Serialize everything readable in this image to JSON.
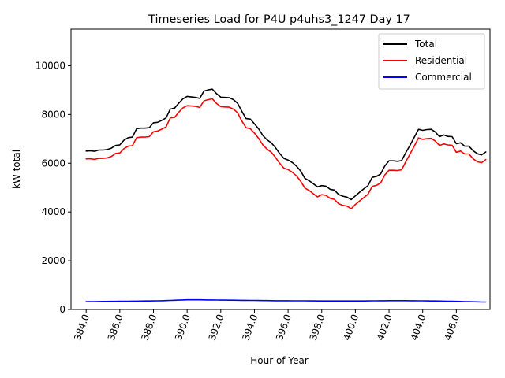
{
  "chart_data": {
    "type": "line",
    "title": "Timeseries Load for P4U p4uhs3_1247  Day 17",
    "xlabel": "Hour of Year",
    "ylabel": "kW total",
    "xlim": [
      383.1,
      408.0
    ],
    "ylim": [
      0,
      11500
    ],
    "xticks": [
      384,
      386,
      388,
      390,
      392,
      394,
      396,
      398,
      400,
      402,
      404,
      406
    ],
    "xtick_labels": [
      "384.0",
      "386.0",
      "388.0",
      "390.0",
      "392.0",
      "394.0",
      "396.0",
      "398.0",
      "400.0",
      "402.0",
      "404.0",
      "406.0"
    ],
    "yticks": [
      0,
      2000,
      4000,
      6000,
      8000,
      10000
    ],
    "ytick_labels": [
      "0",
      "2000",
      "4000",
      "6000",
      "8000",
      "10000"
    ],
    "legend_position": "top-right",
    "x": [
      384.0,
      384.25,
      384.5,
      384.75,
      385.0,
      385.25,
      385.5,
      385.75,
      386.0,
      386.25,
      386.5,
      386.75,
      387.0,
      387.25,
      387.5,
      387.75,
      388.0,
      388.25,
      388.5,
      388.75,
      389.0,
      389.25,
      389.5,
      389.75,
      390.0,
      390.25,
      390.5,
      390.75,
      391.0,
      391.25,
      391.5,
      391.75,
      392.0,
      392.25,
      392.5,
      392.75,
      393.0,
      393.25,
      393.5,
      393.75,
      394.0,
      394.25,
      394.5,
      394.75,
      395.0,
      395.25,
      395.5,
      395.75,
      396.0,
      396.25,
      396.5,
      396.75,
      397.0,
      397.25,
      397.5,
      397.75,
      398.0,
      398.25,
      398.5,
      398.75,
      399.0,
      399.25,
      399.5,
      399.75,
      400.0,
      400.25,
      400.5,
      400.75,
      401.0,
      401.25,
      401.5,
      401.75,
      402.0,
      402.25,
      402.5,
      402.75,
      403.0,
      403.25,
      403.5,
      403.75,
      404.0,
      404.25,
      404.5,
      404.75,
      405.0,
      405.25,
      405.5,
      405.75,
      406.0,
      406.25,
      406.5,
      406.75,
      407.0,
      407.25,
      407.5,
      407.75
    ],
    "series": [
      {
        "name": "Total",
        "color": "#000000",
        "values": [
          6500,
          6510,
          6490,
          6540,
          6540,
          6560,
          6620,
          6730,
          6750,
          6950,
          7050,
          7070,
          7420,
          7440,
          7440,
          7460,
          7660,
          7680,
          7760,
          7860,
          8220,
          8260,
          8460,
          8640,
          8740,
          8720,
          8700,
          8660,
          8960,
          9010,
          9040,
          8850,
          8710,
          8700,
          8690,
          8610,
          8460,
          8130,
          7830,
          7810,
          7620,
          7410,
          7140,
          6960,
          6840,
          6640,
          6400,
          6200,
          6130,
          6030,
          5880,
          5680,
          5380,
          5280,
          5160,
          5030,
          5080,
          5060,
          4930,
          4900,
          4720,
          4650,
          4610,
          4510,
          4660,
          4810,
          4950,
          5080,
          5420,
          5460,
          5560,
          5890,
          6100,
          6100,
          6080,
          6110,
          6440,
          6740,
          7060,
          7390,
          7350,
          7380,
          7390,
          7280,
          7090,
          7160,
          7100,
          7090,
          6800,
          6840,
          6700,
          6700,
          6510,
          6390,
          6340,
          6460
        ]
      },
      {
        "name": "Residential",
        "color": "#ff0000",
        "values": [
          6180,
          6180,
          6160,
          6200,
          6200,
          6220,
          6280,
          6400,
          6420,
          6600,
          6700,
          6720,
          7050,
          7070,
          7070,
          7090,
          7290,
          7320,
          7400,
          7490,
          7860,
          7880,
          8090,
          8270,
          8360,
          8350,
          8330,
          8290,
          8560,
          8610,
          8640,
          8450,
          8320,
          8310,
          8300,
          8220,
          8070,
          7730,
          7460,
          7420,
          7240,
          7020,
          6750,
          6580,
          6450,
          6240,
          6000,
          5800,
          5740,
          5630,
          5480,
          5260,
          4980,
          4880,
          4750,
          4620,
          4710,
          4680,
          4560,
          4520,
          4340,
          4270,
          4240,
          4130,
          4310,
          4450,
          4590,
          4730,
          5050,
          5090,
          5190,
          5520,
          5710,
          5710,
          5700,
          5730,
          6070,
          6380,
          6700,
          7040,
          6980,
          7010,
          7020,
          6910,
          6730,
          6790,
          6750,
          6740,
          6450,
          6500,
          6380,
          6380,
          6180,
          6060,
          6020,
          6150
        ]
      },
      {
        "name": "Commercial",
        "color": "#0000ff",
        "values": [
          320,
          322,
          324,
          326,
          328,
          330,
          332,
          334,
          336,
          338,
          340,
          342,
          344,
          346,
          348,
          350,
          352,
          356,
          360,
          366,
          372,
          378,
          384,
          390,
          396,
          398,
          398,
          396,
          394,
          392,
          390,
          388,
          386,
          384,
          382,
          380,
          378,
          376,
          374,
          372,
          370,
          368,
          366,
          364,
          362,
          360,
          360,
          358,
          358,
          356,
          356,
          354,
          354,
          352,
          352,
          350,
          350,
          350,
          350,
          350,
          350,
          350,
          350,
          350,
          350,
          350,
          350,
          352,
          354,
          356,
          358,
          360,
          362,
          362,
          362,
          362,
          362,
          360,
          358,
          356,
          354,
          352,
          350,
          348,
          346,
          344,
          340,
          336,
          332,
          328,
          324,
          320,
          316,
          312,
          308,
          306
        ]
      }
    ]
  }
}
